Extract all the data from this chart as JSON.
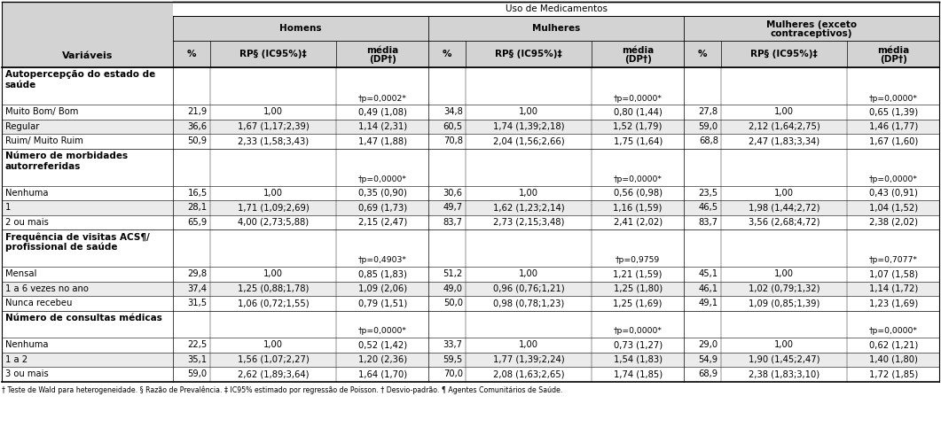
{
  "title": "Uso de Medicamentos",
  "variavel_label": "Variáveis",
  "col_groups": [
    "Homens",
    "Mulheres",
    "Mulheres (exceto\ncontraceptivos)"
  ],
  "sub_headers": [
    "%",
    "RP§ (IC95%)‡",
    "média\n(DP†)"
  ],
  "rows": [
    {
      "type": "section",
      "label": "Autopercepção do estado de\nsaúde"
    },
    {
      "type": "pvalue",
      "h_pval": "†p=0,0002*",
      "m_pval": "†p=0,0000*",
      "me_pval": "†p=0,0000*"
    },
    {
      "type": "data",
      "label": "Muito Bom/ Bom",
      "h": [
        "21,9",
        "1,00",
        "0,49 (1,08)"
      ],
      "m": [
        "34,8",
        "1,00",
        "0,80 (1,44)"
      ],
      "me": [
        "27,8",
        "1,00",
        "0,65 (1,39)"
      ]
    },
    {
      "type": "data",
      "label": "Regular",
      "h": [
        "36,6",
        "1,67 (1,17;2,39)",
        "1,14 (2,31)"
      ],
      "m": [
        "60,5",
        "1,74 (1,39;2,18)",
        "1,52 (1,79)"
      ],
      "me": [
        "59,0",
        "2,12 (1,64;2,75)",
        "1,46 (1,77)"
      ]
    },
    {
      "type": "data",
      "label": "Ruim/ Muito Ruim",
      "h": [
        "50,9",
        "2,33 (1,58;3,43)",
        "1,47 (1,88)"
      ],
      "m": [
        "70,8",
        "2,04 (1,56;2,66)",
        "1,75 (1,64)"
      ],
      "me": [
        "68,8",
        "2,47 (1,83;3,34)",
        "1,67 (1,60)"
      ]
    },
    {
      "type": "section",
      "label": "Número de morbidades\nautorreferidas"
    },
    {
      "type": "pvalue",
      "h_pval": "†p=0,0000*",
      "m_pval": "†p=0,0000*",
      "me_pval": "†p=0,0000*"
    },
    {
      "type": "data",
      "label": "Nenhuma",
      "h": [
        "16,5",
        "1,00",
        "0,35 (0,90)"
      ],
      "m": [
        "30,6",
        "1,00",
        "0,56 (0,98)"
      ],
      "me": [
        "23,5",
        "1,00",
        "0,43 (0,91)"
      ]
    },
    {
      "type": "data",
      "label": "1",
      "h": [
        "28,1",
        "1,71 (1,09;2,69)",
        "0,69 (1,73)"
      ],
      "m": [
        "49,7",
        "1,62 (1,23;2,14)",
        "1,16 (1,59)"
      ],
      "me": [
        "46,5",
        "1,98 (1,44;2,72)",
        "1,04 (1,52)"
      ]
    },
    {
      "type": "data",
      "label": "2 ou mais",
      "h": [
        "65,9",
        "4,00 (2,73;5,88)",
        "2,15 (2,47)"
      ],
      "m": [
        "83,7",
        "2,73 (2,15;3,48)",
        "2,41 (2,02)"
      ],
      "me": [
        "83,7",
        "3,56 (2,68;4,72)",
        "2,38 (2,02)"
      ]
    },
    {
      "type": "section",
      "label": "Frequência de visitas ACS¶/\nprofissional de saúde"
    },
    {
      "type": "pvalue",
      "h_pval": "†p=0,4903*",
      "m_pval": "†p=0,9759",
      "me_pval": "†p=0,7077*"
    },
    {
      "type": "data",
      "label": "Mensal",
      "h": [
        "29,8",
        "1,00",
        "0,85 (1,83)"
      ],
      "m": [
        "51,2",
        "1,00",
        "1,21 (1,59)"
      ],
      "me": [
        "45,1",
        "1,00",
        "1,07 (1,58)"
      ]
    },
    {
      "type": "data",
      "label": "1 a 6 vezes no ano",
      "h": [
        "37,4",
        "1,25 (0,88;1,78)",
        "1,09 (2,06)"
      ],
      "m": [
        "49,0",
        "0,96 (0,76;1,21)",
        "1,25 (1,80)"
      ],
      "me": [
        "46,1",
        "1,02 (0,79;1,32)",
        "1,14 (1,72)"
      ]
    },
    {
      "type": "data",
      "label": "Nunca recebeu",
      "h": [
        "31,5",
        "1,06 (0,72;1,55)",
        "0,79 (1,51)"
      ],
      "m": [
        "50,0",
        "0,98 (0,78;1,23)",
        "1,25 (1,69)"
      ],
      "me": [
        "49,1",
        "1,09 (0,85;1,39)",
        "1,23 (1,69)"
      ]
    },
    {
      "type": "section1",
      "label": "Número de consultas médicas"
    },
    {
      "type": "pvalue",
      "h_pval": "†p=0,0000*",
      "m_pval": "†p=0,0000*",
      "me_pval": "†p=0,0000*"
    },
    {
      "type": "data",
      "label": "Nenhuma",
      "h": [
        "22,5",
        "1,00",
        "0,52 (1,42)"
      ],
      "m": [
        "33,7",
        "1,00",
        "0,73 (1,27)"
      ],
      "me": [
        "29,0",
        "1,00",
        "0,62 (1,21)"
      ]
    },
    {
      "type": "data",
      "label": "1 a 2",
      "h": [
        "35,1",
        "1,56 (1,07;2,27)",
        "1,20 (2,36)"
      ],
      "m": [
        "59,5",
        "1,77 (1,39;2,24)",
        "1,54 (1,83)"
      ],
      "me": [
        "54,9",
        "1,90 (1,45;2,47)",
        "1,40 (1,80)"
      ]
    },
    {
      "type": "data",
      "label": "3 ou mais",
      "h": [
        "59,0",
        "2,62 (1,89;3,64)",
        "1,64 (1,70)"
      ],
      "m": [
        "70,0",
        "2,08 (1,63;2,65)",
        "1,74 (1,85)"
      ],
      "me": [
        "68,9",
        "2,38 (1,83;3,10)",
        "1,72 (1,85)"
      ]
    }
  ],
  "footer": "† Teste de Wald para heterogeneidade. § Razão de Prevalência. ‡ IC95% estimado por regressão de Poisson. † Desvio-padrão. ¶ Agentes Comunitários de Saúde.",
  "bg_gray": "#d3d3d3",
  "bg_white": "#ffffff",
  "bg_stripe": "#ebebeb",
  "font_size": 7.2,
  "bold_size": 7.5
}
